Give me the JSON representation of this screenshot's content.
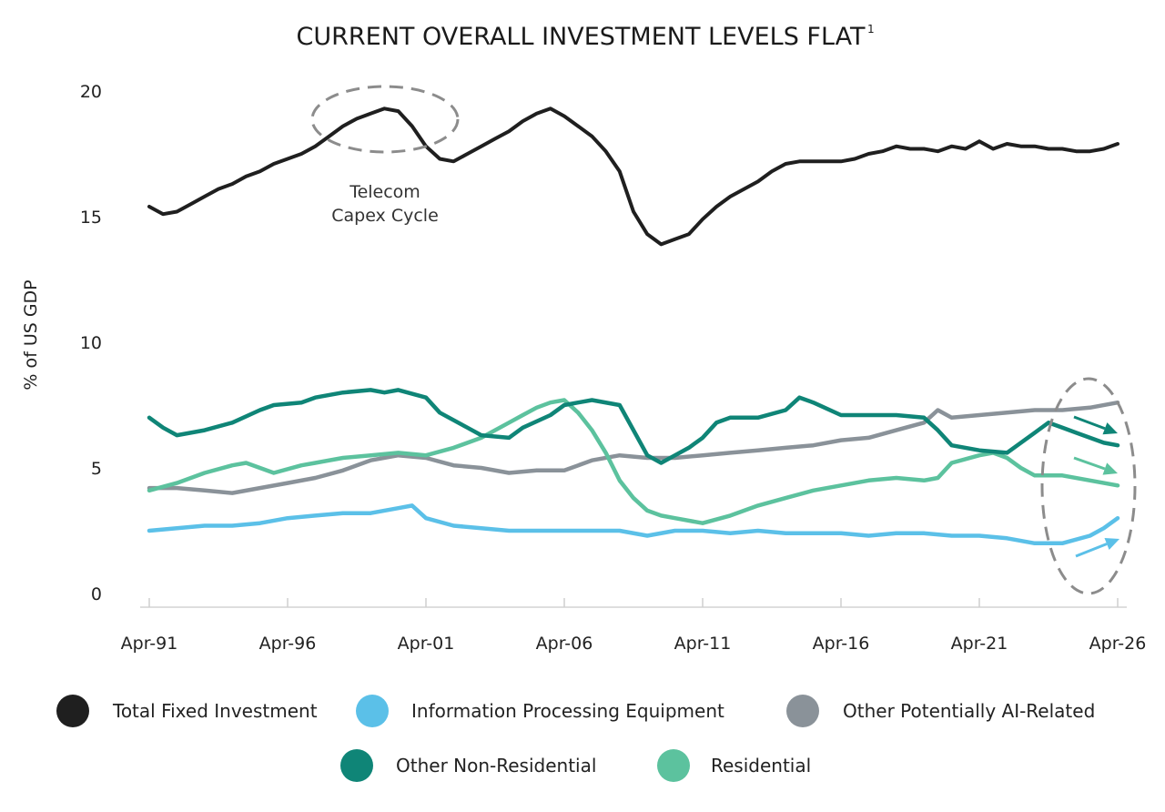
{
  "chart_data": {
    "type": "line",
    "title": "CURRENT OVERALL INVESTMENT LEVELS FLAT",
    "title_superscript": "1",
    "ylabel": "% of US GDP",
    "xlabel": "",
    "ylim": [
      0,
      20
    ],
    "yticks": [
      "0",
      "5",
      "10",
      "15",
      "20"
    ],
    "xlim": [
      1991.25,
      2026.25
    ],
    "xticks": [
      "Apr-91",
      "Apr-96",
      "Apr-01",
      "Apr-06",
      "Apr-11",
      "Apr-16",
      "Apr-21",
      "Apr-26"
    ],
    "grid": false,
    "legend_position": "bottom",
    "annotations": [
      {
        "text_lines": [
          "Telecom",
          "Capex Cycle"
        ],
        "x": 1999.0,
        "y": 18.8
      }
    ],
    "series": [
      {
        "name": "Total Fixed Investment",
        "color": "#1f1f1f",
        "x": [
          1991.25,
          1991.75,
          1992.25,
          1992.75,
          1993.25,
          1993.75,
          1994.25,
          1994.75,
          1995.25,
          1995.75,
          1996.25,
          1996.75,
          1997.25,
          1997.75,
          1998.25,
          1998.75,
          1999.25,
          1999.75,
          2000.25,
          2000.75,
          2001.25,
          2001.75,
          2002.25,
          2002.75,
          2003.25,
          2003.75,
          2004.25,
          2004.75,
          2005.25,
          2005.75,
          2006.25,
          2006.75,
          2007.25,
          2007.75,
          2008.25,
          2008.75,
          2009.25,
          2009.75,
          2010.25,
          2010.75,
          2011.25,
          2011.75,
          2012.25,
          2012.75,
          2013.25,
          2013.75,
          2014.25,
          2014.75,
          2015.25,
          2015.75,
          2016.25,
          2016.75,
          2017.25,
          2017.75,
          2018.25,
          2018.75,
          2019.25,
          2019.75,
          2020.25,
          2020.75,
          2021.25,
          2021.75,
          2022.25,
          2022.75,
          2023.25,
          2023.75,
          2024.25,
          2024.75,
          2025.25,
          2025.75,
          2026.25
        ],
        "values": [
          15.4,
          15.1,
          15.2,
          15.5,
          15.8,
          16.1,
          16.3,
          16.6,
          16.8,
          17.1,
          17.3,
          17.5,
          17.8,
          18.2,
          18.6,
          18.9,
          19.1,
          19.3,
          19.2,
          18.6,
          17.8,
          17.3,
          17.2,
          17.5,
          17.8,
          18.1,
          18.4,
          18.8,
          19.1,
          19.3,
          19.0,
          18.6,
          18.2,
          17.6,
          16.8,
          15.2,
          14.3,
          13.9,
          14.1,
          14.3,
          14.9,
          15.4,
          15.8,
          16.1,
          16.4,
          16.8,
          17.1,
          17.2,
          17.2,
          17.2,
          17.2,
          17.3,
          17.5,
          17.6,
          17.8,
          17.7,
          17.7,
          17.6,
          17.8,
          17.7,
          18.0,
          17.7,
          17.9,
          17.8,
          17.8,
          17.7,
          17.7,
          17.6,
          17.6,
          17.7,
          17.9
        ]
      },
      {
        "name": "Information Processing Equipment",
        "color": "#5bc0e8",
        "x": [
          1991.25,
          1992.25,
          1993.25,
          1994.25,
          1995.25,
          1996.25,
          1997.25,
          1998.25,
          1999.25,
          2000.25,
          2000.75,
          2001.25,
          2002.25,
          2003.25,
          2004.25,
          2005.25,
          2006.25,
          2007.25,
          2008.25,
          2009.25,
          2010.25,
          2011.25,
          2012.25,
          2013.25,
          2014.25,
          2015.25,
          2016.25,
          2017.25,
          2018.25,
          2019.25,
          2020.25,
          2021.25,
          2022.25,
          2023.25,
          2024.25,
          2025.25,
          2025.75,
          2026.25
        ],
        "values": [
          2.5,
          2.6,
          2.7,
          2.7,
          2.8,
          3.0,
          3.1,
          3.2,
          3.2,
          3.4,
          3.5,
          3.0,
          2.7,
          2.6,
          2.5,
          2.5,
          2.5,
          2.5,
          2.5,
          2.3,
          2.5,
          2.5,
          2.4,
          2.5,
          2.4,
          2.4,
          2.4,
          2.3,
          2.4,
          2.4,
          2.3,
          2.3,
          2.2,
          2.0,
          2.0,
          2.3,
          2.6,
          3.0
        ]
      },
      {
        "name": "Other Potentially AI-Related",
        "color": "#8a9299",
        "x": [
          1991.25,
          1992.25,
          1993.25,
          1994.25,
          1995.25,
          1996.25,
          1997.25,
          1998.25,
          1999.25,
          2000.25,
          2001.25,
          2002.25,
          2003.25,
          2004.25,
          2005.25,
          2006.25,
          2007.25,
          2008.25,
          2009.25,
          2010.25,
          2011.25,
          2012.25,
          2013.25,
          2014.25,
          2015.25,
          2016.25,
          2017.25,
          2018.25,
          2019.25,
          2019.75,
          2020.25,
          2021.25,
          2022.25,
          2023.25,
          2024.25,
          2025.25,
          2026.25
        ],
        "values": [
          4.2,
          4.2,
          4.1,
          4.0,
          4.2,
          4.4,
          4.6,
          4.9,
          5.3,
          5.5,
          5.4,
          5.1,
          5.0,
          4.8,
          4.9,
          4.9,
          5.3,
          5.5,
          5.4,
          5.4,
          5.5,
          5.6,
          5.7,
          5.8,
          5.9,
          6.1,
          6.2,
          6.5,
          6.8,
          7.3,
          7.0,
          7.1,
          7.2,
          7.3,
          7.3,
          7.4,
          7.6
        ]
      },
      {
        "name": "Other Non-Residential",
        "color": "#0f8577",
        "x": [
          1991.25,
          1991.75,
          1992.25,
          1993.25,
          1994.25,
          1995.25,
          1995.75,
          1996.75,
          1997.25,
          1998.25,
          1999.25,
          1999.75,
          2000.25,
          2001.25,
          2001.75,
          2002.75,
          2003.25,
          2004.25,
          2004.75,
          2005.75,
          2006.25,
          2006.75,
          2007.25,
          2008.25,
          2009.25,
          2009.75,
          2010.25,
          2010.75,
          2011.25,
          2011.75,
          2012.25,
          2013.25,
          2014.25,
          2014.75,
          2015.25,
          2016.25,
          2017.25,
          2018.25,
          2019.25,
          2019.75,
          2020.25,
          2021.25,
          2022.25,
          2023.25,
          2023.75,
          2024.25,
          2024.75,
          2025.25,
          2025.75,
          2026.25
        ],
        "values": [
          7.0,
          6.6,
          6.3,
          6.5,
          6.8,
          7.3,
          7.5,
          7.6,
          7.8,
          8.0,
          8.1,
          8.0,
          8.1,
          7.8,
          7.2,
          6.6,
          6.3,
          6.2,
          6.6,
          7.1,
          7.5,
          7.6,
          7.7,
          7.5,
          5.5,
          5.2,
          5.5,
          5.8,
          6.2,
          6.8,
          7.0,
          7.0,
          7.3,
          7.8,
          7.6,
          7.1,
          7.1,
          7.1,
          7.0,
          6.5,
          5.9,
          5.7,
          5.6,
          6.4,
          6.8,
          6.6,
          6.4,
          6.2,
          6.0,
          5.9
        ]
      },
      {
        "name": "Residential",
        "color": "#5cc29e",
        "x": [
          1991.25,
          1992.25,
          1993.25,
          1994.25,
          1994.75,
          1995.25,
          1995.75,
          1996.75,
          1997.25,
          1998.25,
          1999.25,
          2000.25,
          2001.25,
          2002.25,
          2003.25,
          2004.25,
          2004.75,
          2005.25,
          2005.75,
          2006.25,
          2006.75,
          2007.25,
          2007.75,
          2008.25,
          2008.75,
          2009.25,
          2009.75,
          2010.25,
          2011.25,
          2012.25,
          2013.25,
          2014.25,
          2015.25,
          2016.25,
          2017.25,
          2018.25,
          2019.25,
          2019.75,
          2020.25,
          2021.25,
          2021.75,
          2022.25,
          2022.75,
          2023.25,
          2024.25,
          2025.25,
          2026.25
        ],
        "values": [
          4.1,
          4.4,
          4.8,
          5.1,
          5.2,
          5.0,
          4.8,
          5.1,
          5.2,
          5.4,
          5.5,
          5.6,
          5.5,
          5.8,
          6.2,
          6.8,
          7.1,
          7.4,
          7.6,
          7.7,
          7.2,
          6.5,
          5.6,
          4.5,
          3.8,
          3.3,
          3.1,
          3.0,
          2.8,
          3.1,
          3.5,
          3.8,
          4.1,
          4.3,
          4.5,
          4.6,
          4.5,
          4.6,
          5.2,
          5.5,
          5.6,
          5.4,
          5.0,
          4.7,
          4.7,
          4.5,
          4.3
        ]
      }
    ]
  }
}
